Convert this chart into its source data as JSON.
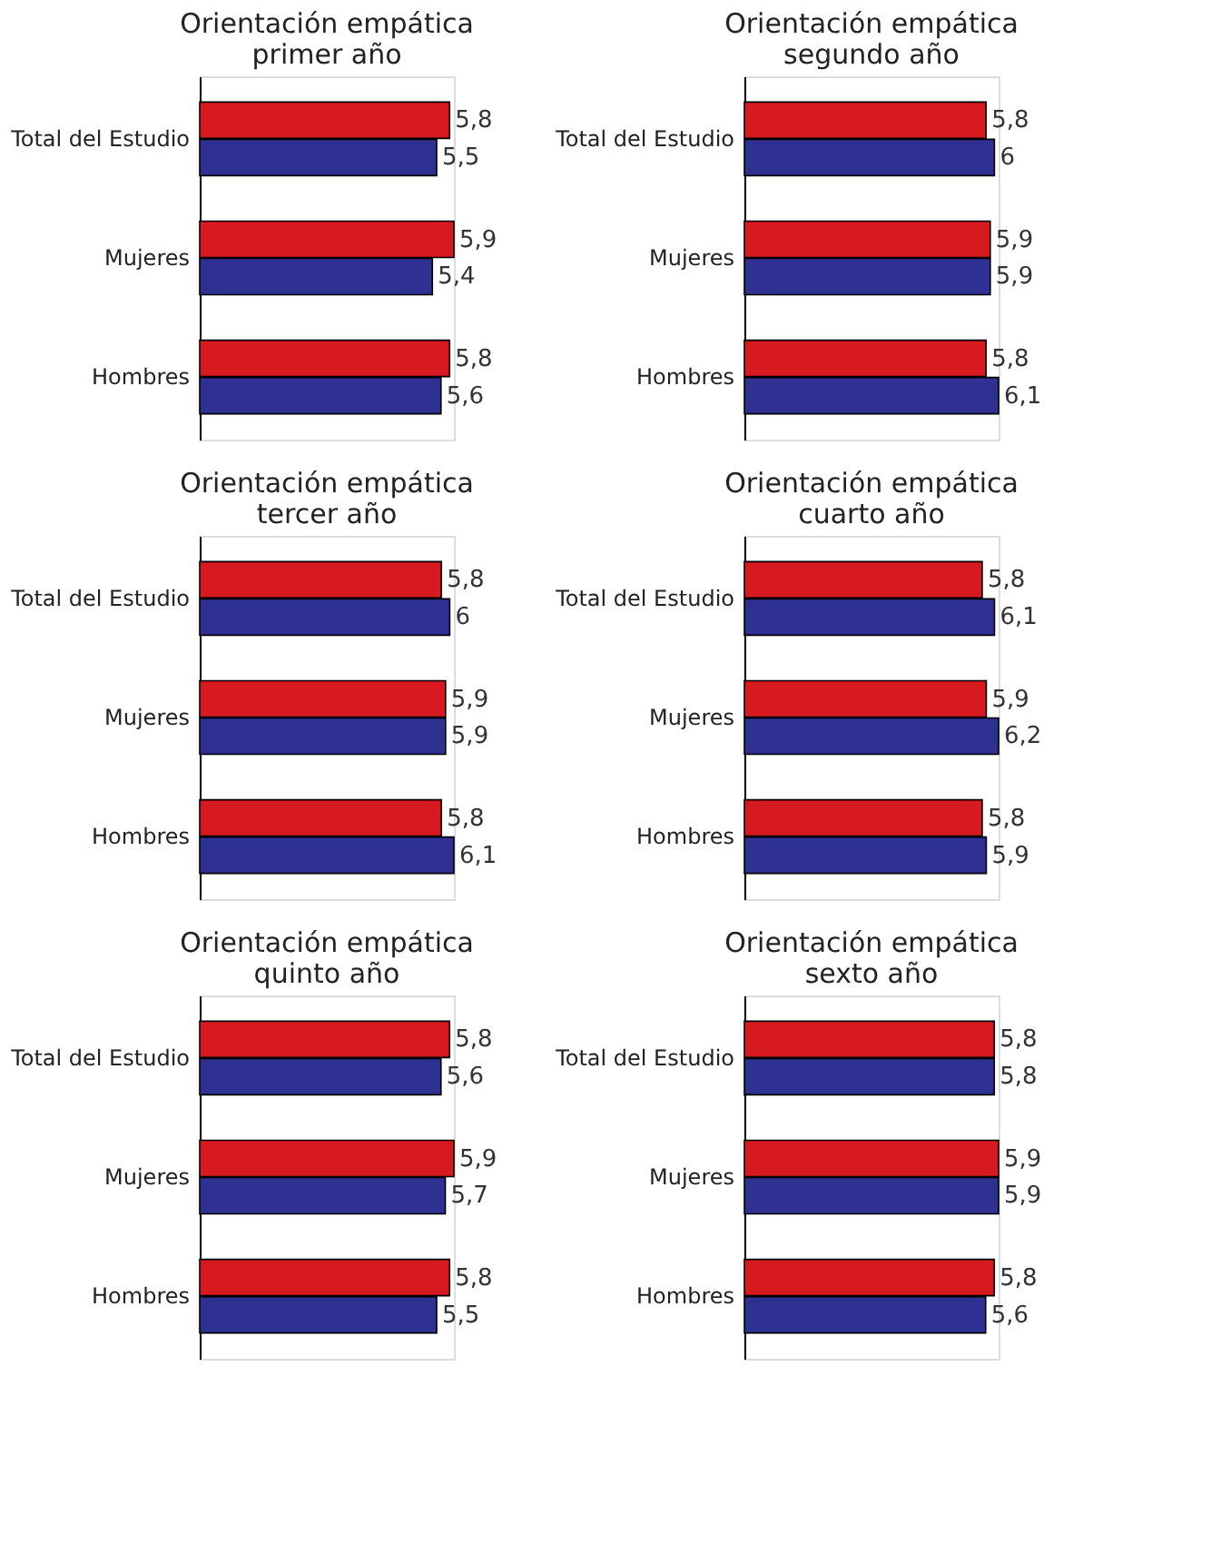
{
  "chart_data": [
    {
      "type": "bar",
      "orientation": "horizontal",
      "title": "Orientación empática\nprimer año",
      "categories": [
        "Total del Estudio",
        "Mujeres",
        "Hombres"
      ],
      "series": [
        {
          "color": "#d71920",
          "values": [
            5.8,
            5.9,
            5.8
          ],
          "value_labels": [
            "5,8",
            "5,9",
            "5,8"
          ]
        },
        {
          "color": "#2e3192",
          "values": [
            5.5,
            5.4,
            5.6
          ],
          "value_labels": [
            "5,5",
            "5,4",
            "5,6"
          ]
        }
      ],
      "tick_labels": "y",
      "grid": false,
      "legend": false
    },
    {
      "type": "bar",
      "orientation": "horizontal",
      "title": "Orientación empática\nsegundo año",
      "categories": [
        "Total del Estudio",
        "Mujeres",
        "Hombres"
      ],
      "series": [
        {
          "color": "#d71920",
          "values": [
            5.8,
            5.9,
            5.8
          ],
          "value_labels": [
            "5,8",
            "5,9",
            "5,8"
          ]
        },
        {
          "color": "#2e3192",
          "values": [
            6,
            5.9,
            6.1
          ],
          "value_labels": [
            "6",
            "5,9",
            "6,1"
          ]
        }
      ],
      "tick_labels": "y",
      "grid": false,
      "legend": false
    },
    {
      "type": "bar",
      "orientation": "horizontal",
      "title": "Orientación empática\ntercer año",
      "categories": [
        "Total del Estudio",
        "Mujeres",
        "Hombres"
      ],
      "series": [
        {
          "color": "#d71920",
          "values": [
            5.8,
            5.9,
            5.8
          ],
          "value_labels": [
            "5,8",
            "5,9",
            "5,8"
          ]
        },
        {
          "color": "#2e3192",
          "values": [
            6,
            5.9,
            6.1
          ],
          "value_labels": [
            "6",
            "5,9",
            "6,1"
          ]
        }
      ],
      "tick_labels": "y",
      "grid": false,
      "legend": false
    },
    {
      "type": "bar",
      "orientation": "horizontal",
      "title": "Orientación empática\ncuarto año",
      "categories": [
        "Total del Estudio",
        "Mujeres",
        "Hombres"
      ],
      "series": [
        {
          "color": "#d71920",
          "values": [
            5.8,
            5.9,
            5.8
          ],
          "value_labels": [
            "5,8",
            "5,9",
            "5,8"
          ]
        },
        {
          "color": "#2e3192",
          "values": [
            6.1,
            6.2,
            5.9
          ],
          "value_labels": [
            "6,1",
            "6,2",
            "5,9"
          ]
        }
      ],
      "tick_labels": "y",
      "grid": false,
      "legend": false
    },
    {
      "type": "bar",
      "orientation": "horizontal",
      "title": "Orientación empática\nquinto año",
      "categories": [
        "Total del Estudio",
        "Mujeres",
        "Hombres"
      ],
      "series": [
        {
          "color": "#d71920",
          "values": [
            5.8,
            5.9,
            5.8
          ],
          "value_labels": [
            "5,8",
            "5,9",
            "5,8"
          ]
        },
        {
          "color": "#2e3192",
          "values": [
            5.6,
            5.7,
            5.5
          ],
          "value_labels": [
            "5,6",
            "5,7",
            "5,5"
          ]
        }
      ],
      "tick_labels": "y",
      "grid": false,
      "legend": false
    },
    {
      "type": "bar",
      "orientation": "horizontal",
      "title": "Orientación empática\nsexto año",
      "categories": [
        "Total del Estudio",
        "Mujeres",
        "Hombres"
      ],
      "series": [
        {
          "color": "#d71920",
          "values": [
            5.8,
            5.9,
            5.8
          ],
          "value_labels": [
            "5,8",
            "5,9",
            "5,8"
          ]
        },
        {
          "color": "#2e3192",
          "values": [
            5.8,
            5.9,
            5.6
          ],
          "value_labels": [
            "5,8",
            "5,9",
            "5,6"
          ]
        }
      ],
      "tick_labels": "y",
      "grid": false,
      "legend": false
    }
  ]
}
